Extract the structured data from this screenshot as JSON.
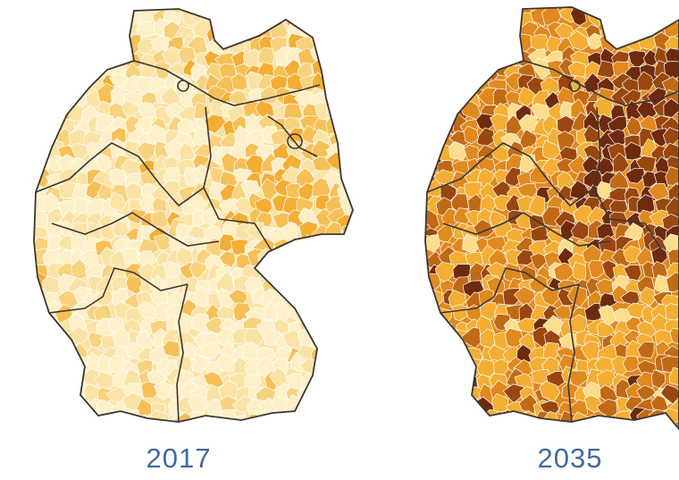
{
  "maps": [
    {
      "label": "2017",
      "palette": [
        "#fdf0c8",
        "#fbe3a5",
        "#f8d27d",
        "#f6c057",
        "#f3ae33"
      ],
      "weights": [
        0.34,
        0.36,
        0.2,
        0.08,
        0.02
      ]
    },
    {
      "label": "2035",
      "palette": [
        "#fcdd8c",
        "#f3ae33",
        "#e0891e",
        "#c06a16",
        "#99470f",
        "#6e2a0c"
      ],
      "weights": [
        0.06,
        0.34,
        0.3,
        0.16,
        0.09,
        0.05
      ]
    }
  ],
  "colors": {
    "label": "#3f6aa0",
    "state_border": "#3b3632",
    "district_border": "#ffffff"
  }
}
